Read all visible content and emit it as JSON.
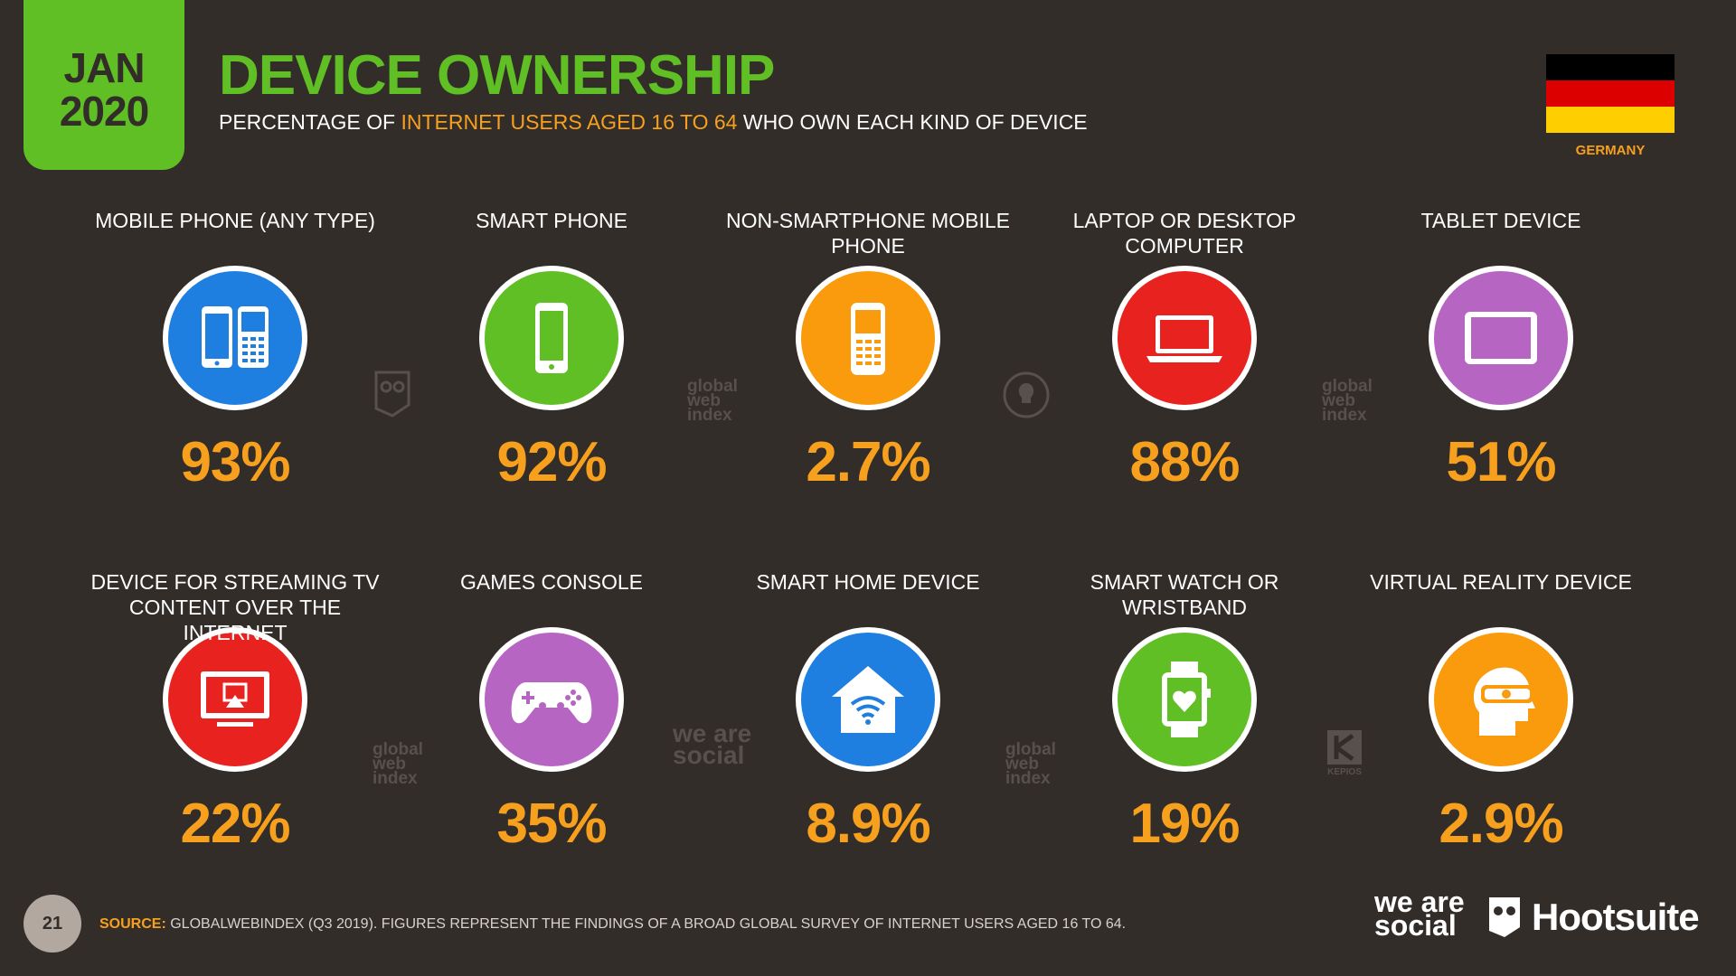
{
  "header": {
    "date_month": "JAN",
    "date_year": "2020",
    "title": "DEVICE OWNERSHIP",
    "subtitle_prefix": "PERCENTAGE OF ",
    "subtitle_highlight": "INTERNET USERS AGED 16 TO 64",
    "subtitle_suffix": " WHO OWN EACH KIND OF DEVICE"
  },
  "country": {
    "name": "GERMANY",
    "flag_colors": [
      "#000000",
      "#dd0000",
      "#ffce00"
    ]
  },
  "colors": {
    "background": "#332d2a",
    "accent_green": "#5fbf24",
    "accent_orange": "#f7a01e"
  },
  "devices": [
    {
      "label": "MOBILE PHONE (ANY TYPE)",
      "value": "93%",
      "icon": "mobile-phones-icon",
      "color": "#1e7fe0"
    },
    {
      "label": "SMART PHONE",
      "value": "92%",
      "icon": "smartphone-icon",
      "color": "#5fbf24"
    },
    {
      "label": "NON-SMARTPHONE MOBILE PHONE",
      "value": "2.7%",
      "icon": "feature-phone-icon",
      "color": "#f99b0c"
    },
    {
      "label": "LAPTOP OR DESKTOP COMPUTER",
      "value": "88%",
      "icon": "laptop-icon",
      "color": "#e8221e"
    },
    {
      "label": "TABLET DEVICE",
      "value": "51%",
      "icon": "tablet-icon",
      "color": "#b765c2"
    },
    {
      "label": "DEVICE FOR STREAMING TV CONTENT OVER THE INTERNET",
      "value": "22%",
      "icon": "streaming-tv-icon",
      "color": "#e8221e"
    },
    {
      "label": "GAMES CONSOLE",
      "value": "35%",
      "icon": "gamepad-icon",
      "color": "#b765c2"
    },
    {
      "label": "SMART HOME DEVICE",
      "value": "8.9%",
      "icon": "smart-home-icon",
      "color": "#1e7fe0"
    },
    {
      "label": "SMART WATCH OR WRISTBAND",
      "value": "19%",
      "icon": "smartwatch-icon",
      "color": "#5fbf24"
    },
    {
      "label": "VIRTUAL REALITY DEVICE",
      "value": "2.9%",
      "icon": "vr-headset-icon",
      "color": "#f99b0c"
    }
  ],
  "watermarks": {
    "gwi": "global web index",
    "was": "we are social",
    "kepios": "KEPIOS"
  },
  "footer": {
    "page_number": "21",
    "source_label": "SOURCE:",
    "source_text": " GLOBALWEBINDEX (Q3 2019). FIGURES REPRESENT THE FINDINGS OF A BROAD GLOBAL SURVEY OF INTERNET USERS AGED 16 TO 64.",
    "brand_was": "we are social",
    "brand_hootsuite": "Hootsuite"
  }
}
